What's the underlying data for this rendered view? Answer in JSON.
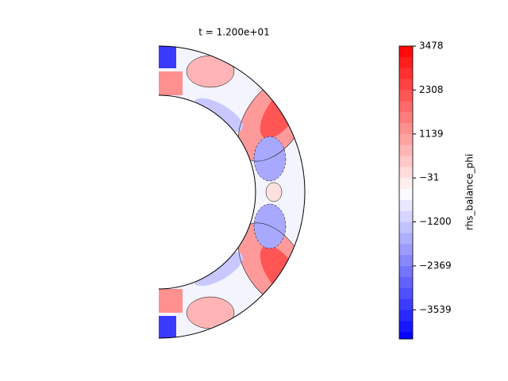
{
  "chart_data": {
    "type": "contour",
    "title": "t = 1.200e+01",
    "colorbar_label": "rhs_balance_phi",
    "colormap": "bwr",
    "clim": [
      -4312,
      3478
    ],
    "cticks": [
      3478,
      2308,
      1139,
      {
        "value": -31,
        "label": "−31"
      },
      {
        "value": -1200,
        "label": "−1200"
      },
      {
        "value": -2369,
        "label": "−2369"
      },
      {
        "value": -3539,
        "label": "−3539"
      }
    ]
  }
}
